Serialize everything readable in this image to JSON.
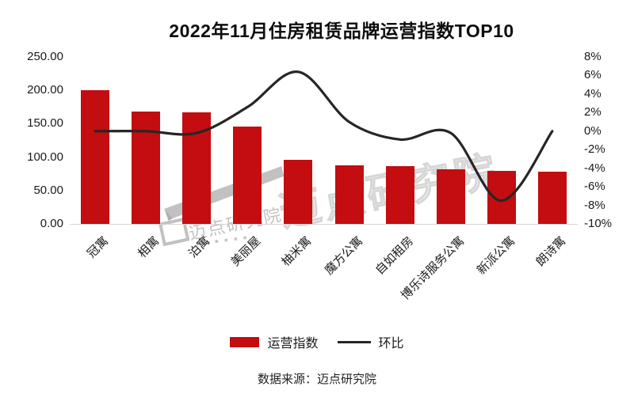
{
  "title": "2022年11月住房租赁品牌运营指数TOP10",
  "source_note": "数据来源：迈点研究院",
  "watermark": {
    "logo_text": "迈点研究院",
    "outline_text": "迈点研究院"
  },
  "legend": {
    "bar_label": "运营指数",
    "line_label": "环比"
  },
  "colors": {
    "bar": "#c30d10",
    "line": "#262626",
    "axis_line": "#d6d6d6",
    "text": "#1a1a1a"
  },
  "chart_data": {
    "type": "bar",
    "subtype": "combo-bar-line",
    "title": "2022年11月住房租赁品牌运营指数TOP10",
    "categories": [
      "冠寓",
      "相寓",
      "泊寓",
      "美丽屋",
      "柚米寓",
      "魔方公寓",
      "自如租房",
      "博乐诗服务公寓",
      "新派公寓",
      "朗诗寓"
    ],
    "series": [
      {
        "name": "运营指数",
        "type": "bar",
        "axis": "left",
        "values": [
          200,
          168,
          167,
          146,
          96,
          88,
          86,
          82,
          79,
          78
        ]
      },
      {
        "name": "环比",
        "type": "line",
        "axis": "right",
        "unit": "%",
        "values": [
          0.0,
          0.0,
          -0.2,
          2.6,
          6.4,
          1.0,
          -0.9,
          -0.2,
          -7.5,
          0.0
        ]
      }
    ],
    "left_axis": {
      "min": 0,
      "max": 250,
      "tick_labels": [
        "250.00",
        "200.00",
        "150.00",
        "100.00",
        "50.00",
        "0.00"
      ]
    },
    "right_axis": {
      "min": -10,
      "max": 8,
      "tick_labels": [
        "8%",
        "6%",
        "4%",
        "2%",
        "0%",
        "-2%",
        "-4%",
        "-6%",
        "-8%",
        "-10%"
      ]
    },
    "grid": false,
    "legend_position": "bottom"
  }
}
